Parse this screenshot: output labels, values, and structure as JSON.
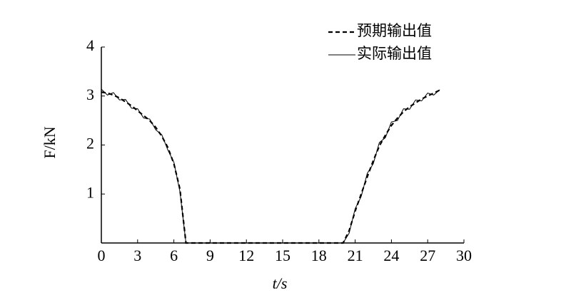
{
  "chart_data": {
    "type": "line",
    "x_label": "t/s",
    "y_label": "F/kN",
    "x": [
      0,
      0.5,
      1,
      1.5,
      2,
      2.5,
      3,
      3.5,
      4,
      4.5,
      5,
      5.5,
      6,
      6.5,
      7,
      7.5,
      8,
      8.5,
      9,
      9.5,
      10,
      10.5,
      11,
      11.5,
      12,
      12.5,
      13,
      13.5,
      14,
      14.5,
      15,
      15.5,
      16,
      16.5,
      17,
      17.5,
      18,
      18.5,
      19,
      19.5,
      20,
      20.5,
      21,
      21.5,
      22,
      22.5,
      23,
      23.5,
      24,
      24.5,
      25,
      25.5,
      26,
      26.5,
      27,
      27.5,
      28
    ],
    "series": [
      {
        "name": "预期输出值",
        "color": "#000000",
        "dash": true,
        "values": [
          3.08,
          3.06,
          3.02,
          2.96,
          2.88,
          2.8,
          2.7,
          2.6,
          2.5,
          2.36,
          2.18,
          1.95,
          1.62,
          1.1,
          0,
          0,
          0,
          0,
          0,
          0,
          0,
          0,
          0,
          0,
          0,
          0,
          0,
          0,
          0,
          0,
          0,
          0,
          0,
          0,
          0,
          0,
          0,
          0,
          0,
          0,
          0,
          0.25,
          0.65,
          1.0,
          1.35,
          1.68,
          1.98,
          2.2,
          2.4,
          2.55,
          2.68,
          2.78,
          2.86,
          2.94,
          3.0,
          3.06,
          3.12
        ]
      },
      {
        "name": "实际输出值",
        "color": "#000000",
        "dash": false,
        "values": [
          3.14,
          3.02,
          3.07,
          2.92,
          2.93,
          2.75,
          2.74,
          2.55,
          2.53,
          2.31,
          2.21,
          1.9,
          1.65,
          1.05,
          0,
          0,
          0,
          0,
          0,
          0,
          0,
          0,
          0,
          0,
          0,
          0,
          0,
          0,
          0,
          0,
          0,
          0,
          0,
          0,
          0,
          0,
          0,
          0,
          0,
          0,
          0,
          0.2,
          0.7,
          0.95,
          1.42,
          1.62,
          2.05,
          2.15,
          2.47,
          2.5,
          2.74,
          2.73,
          2.92,
          2.9,
          3.06,
          3.02,
          3.13
        ]
      }
    ],
    "xlim": [
      0,
      30
    ],
    "xticks": [
      0,
      3,
      6,
      9,
      12,
      15,
      18,
      21,
      24,
      27,
      30
    ],
    "ylim": [
      0,
      4
    ],
    "yticks": [
      1,
      2,
      3,
      4
    ],
    "legend": "top-right"
  }
}
